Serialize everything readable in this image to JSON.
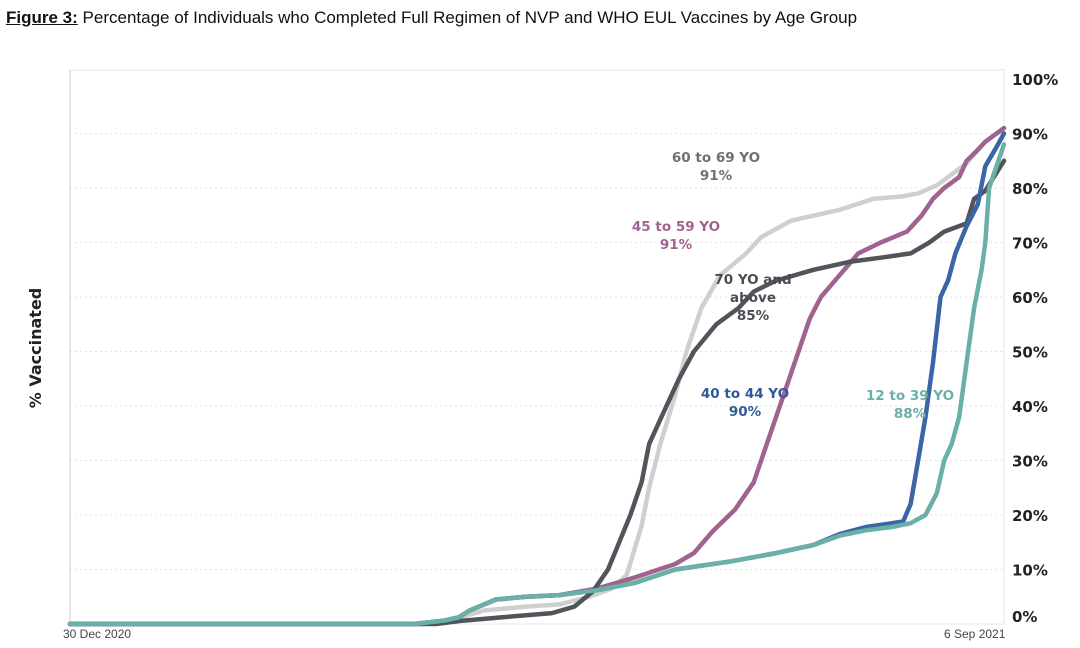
{
  "caption": {
    "figure_label": "Figure 3:",
    "text": "Percentage of Individuals who Completed Full Regimen of NVP and WHO EUL Vaccines by Age Group"
  },
  "chart_data": {
    "type": "line",
    "ylabel": "% Vaccinated",
    "ylim": [
      0,
      100
    ],
    "yticks": [
      "0%",
      "10%",
      "20%",
      "30%",
      "40%",
      "50%",
      "60%",
      "70%",
      "80%",
      "90%",
      "100%"
    ],
    "x_start": "2020-12-30",
    "x_end": "2021-09-06",
    "xtick_labels": [
      "30 Dec 2020",
      "6 Sep 2021"
    ],
    "grid": true,
    "y_axis_side": "right",
    "series": [
      {
        "color": "#cfcfcf",
        "label_lines": [
          "60 to 69 YO",
          "91%"
        ],
        "points": [
          [
            "2020-12-30",
            0
          ],
          [
            "2021-04-01",
            0
          ],
          [
            "2021-04-10",
            0.6
          ],
          [
            "2021-04-20",
            2.5
          ],
          [
            "2021-05-01",
            3.2
          ],
          [
            "2021-05-10",
            3.6
          ],
          [
            "2021-05-18",
            5.0
          ],
          [
            "2021-05-24",
            6.5
          ],
          [
            "2021-05-28",
            9
          ],
          [
            "2021-06-01",
            18
          ],
          [
            "2021-06-03",
            25
          ],
          [
            "2021-06-06",
            33
          ],
          [
            "2021-06-10",
            42
          ],
          [
            "2021-06-13",
            50
          ],
          [
            "2021-06-17",
            58
          ],
          [
            "2021-06-22",
            64
          ],
          [
            "2021-06-29",
            68
          ],
          [
            "2021-07-03",
            71
          ],
          [
            "2021-07-11",
            74
          ],
          [
            "2021-07-24",
            76
          ],
          [
            "2021-08-02",
            78
          ],
          [
            "2021-08-10",
            78.5
          ],
          [
            "2021-08-14",
            79
          ],
          [
            "2021-08-19",
            80.5
          ],
          [
            "2021-08-24",
            83
          ],
          [
            "2021-08-27",
            84.5
          ],
          [
            "2021-08-30",
            87
          ],
          [
            "2021-09-01",
            88.5
          ],
          [
            "2021-09-06",
            91
          ]
        ]
      },
      {
        "color": "#a0628f",
        "label_lines": [
          "45 to 59 YO",
          "91%"
        ],
        "points": [
          [
            "2020-12-30",
            0
          ],
          [
            "2021-04-01",
            0
          ],
          [
            "2021-04-09",
            0.6
          ],
          [
            "2021-04-13",
            1.2
          ],
          [
            "2021-04-16",
            2.5
          ],
          [
            "2021-04-23",
            4.5
          ],
          [
            "2021-05-01",
            5.0
          ],
          [
            "2021-05-10",
            5.3
          ],
          [
            "2021-05-20",
            6.5
          ],
          [
            "2021-05-30",
            8.5
          ],
          [
            "2021-06-10",
            11
          ],
          [
            "2021-06-15",
            13
          ],
          [
            "2021-06-20",
            17
          ],
          [
            "2021-06-26",
            21
          ],
          [
            "2021-07-01",
            26
          ],
          [
            "2021-07-05",
            34
          ],
          [
            "2021-07-09",
            42
          ],
          [
            "2021-07-12",
            48
          ],
          [
            "2021-07-16",
            56
          ],
          [
            "2021-07-19",
            60
          ],
          [
            "2021-07-24",
            64
          ],
          [
            "2021-07-29",
            68
          ],
          [
            "2021-08-04",
            70
          ],
          [
            "2021-08-11",
            72
          ],
          [
            "2021-08-15",
            75
          ],
          [
            "2021-08-18",
            78
          ],
          [
            "2021-08-21",
            80
          ],
          [
            "2021-08-25",
            82
          ],
          [
            "2021-08-27",
            85
          ],
          [
            "2021-08-30",
            87
          ],
          [
            "2021-09-01",
            88.5
          ],
          [
            "2021-09-06",
            91
          ]
        ]
      },
      {
        "color": "#50545b",
        "label_lines": [
          "70 YO and",
          "above",
          "85%"
        ],
        "points": [
          [
            "2020-12-30",
            0
          ],
          [
            "2021-04-07",
            0
          ],
          [
            "2021-04-14",
            0.6
          ],
          [
            "2021-04-24",
            1.2
          ],
          [
            "2021-05-08",
            2.0
          ],
          [
            "2021-05-14",
            3.2
          ],
          [
            "2021-05-19",
            6
          ],
          [
            "2021-05-23",
            10
          ],
          [
            "2021-05-26",
            15
          ],
          [
            "2021-05-29",
            20
          ],
          [
            "2021-06-01",
            26
          ],
          [
            "2021-06-03",
            33
          ],
          [
            "2021-06-07",
            39
          ],
          [
            "2021-06-11",
            45
          ],
          [
            "2021-06-15",
            50
          ],
          [
            "2021-06-21",
            55
          ],
          [
            "2021-06-27",
            58
          ],
          [
            "2021-07-01",
            61
          ],
          [
            "2021-07-07",
            63
          ],
          [
            "2021-07-17",
            65
          ],
          [
            "2021-07-27",
            66.5
          ],
          [
            "2021-08-05",
            67.3
          ],
          [
            "2021-08-12",
            68
          ],
          [
            "2021-08-17",
            70
          ],
          [
            "2021-08-21",
            72
          ],
          [
            "2021-08-27",
            73.5
          ],
          [
            "2021-08-29",
            78
          ],
          [
            "2021-09-01",
            79.5
          ],
          [
            "2021-09-06",
            85
          ]
        ]
      },
      {
        "color": "#3b66a5",
        "label_lines": [
          "40 to 44 YO",
          "90%"
        ],
        "points": [
          [
            "2020-12-30",
            0
          ],
          [
            "2021-04-01",
            0
          ],
          [
            "2021-04-09",
            0.6
          ],
          [
            "2021-04-13",
            1.2
          ],
          [
            "2021-04-16",
            2.5
          ],
          [
            "2021-04-23",
            4.5
          ],
          [
            "2021-05-01",
            5.0
          ],
          [
            "2021-05-10",
            5.3
          ],
          [
            "2021-05-20",
            6.2
          ],
          [
            "2021-05-30",
            7.5
          ],
          [
            "2021-06-10",
            10
          ],
          [
            "2021-06-25",
            11.5
          ],
          [
            "2021-07-07",
            13
          ],
          [
            "2021-07-17",
            14.5
          ],
          [
            "2021-07-24",
            16.5
          ],
          [
            "2021-07-31",
            17.8
          ],
          [
            "2021-08-07",
            18.5
          ],
          [
            "2021-08-10",
            18.8
          ],
          [
            "2021-08-12",
            22
          ],
          [
            "2021-08-14",
            30
          ],
          [
            "2021-08-16",
            38
          ],
          [
            "2021-08-18",
            48
          ],
          [
            "2021-08-20",
            60
          ],
          [
            "2021-08-22",
            63
          ],
          [
            "2021-08-24",
            68
          ],
          [
            "2021-08-27",
            73
          ],
          [
            "2021-08-30",
            77
          ],
          [
            "2021-09-01",
            84
          ],
          [
            "2021-09-04",
            87.5
          ],
          [
            "2021-09-06",
            90
          ]
        ]
      },
      {
        "color": "#6aafa8",
        "label_lines": [
          "12 to 39 YO",
          "88%"
        ],
        "points": [
          [
            "2020-12-30",
            0
          ],
          [
            "2021-04-01",
            0
          ],
          [
            "2021-04-09",
            0.6
          ],
          [
            "2021-04-13",
            1.2
          ],
          [
            "2021-04-16",
            2.5
          ],
          [
            "2021-04-23",
            4.5
          ],
          [
            "2021-05-01",
            5.0
          ],
          [
            "2021-05-10",
            5.3
          ],
          [
            "2021-05-20",
            6.2
          ],
          [
            "2021-05-30",
            7.5
          ],
          [
            "2021-06-10",
            10
          ],
          [
            "2021-06-25",
            11.5
          ],
          [
            "2021-07-07",
            13
          ],
          [
            "2021-07-17",
            14.5
          ],
          [
            "2021-07-24",
            16.2
          ],
          [
            "2021-07-31",
            17.2
          ],
          [
            "2021-08-07",
            17.8
          ],
          [
            "2021-08-12",
            18.5
          ],
          [
            "2021-08-16",
            20
          ],
          [
            "2021-08-19",
            24
          ],
          [
            "2021-08-21",
            30
          ],
          [
            "2021-08-23",
            33
          ],
          [
            "2021-08-25",
            38
          ],
          [
            "2021-08-27",
            48
          ],
          [
            "2021-08-29",
            58
          ],
          [
            "2021-08-31",
            65
          ],
          [
            "2021-09-01",
            70
          ],
          [
            "2021-09-02",
            80
          ],
          [
            "2021-09-04",
            84
          ],
          [
            "2021-09-06",
            88
          ]
        ]
      }
    ]
  }
}
